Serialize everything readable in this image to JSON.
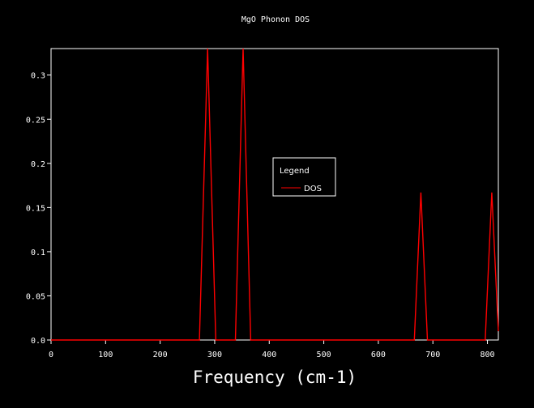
{
  "chart_data": {
    "type": "line",
    "title": "MgO Phonon DOS",
    "xlabel": "Frequency (cm-1)",
    "ylabel": "",
    "xlim": [
      0,
      820
    ],
    "ylim": [
      0,
      0.33
    ],
    "xticks": [
      0,
      100,
      200,
      300,
      400,
      500,
      600,
      700,
      800
    ],
    "xtick_labels": [
      "0",
      "100",
      "200",
      "300",
      "400",
      "500",
      "600",
      "700",
      "800"
    ],
    "yticks": [
      0,
      0.05,
      0.1,
      0.15,
      0.2,
      0.25,
      0.3
    ],
    "ytick_labels": [
      "0.0",
      "0.05",
      "0.1",
      "0.15",
      "0.2",
      "0.25",
      "0.3"
    ],
    "grid": false,
    "legend": {
      "title": "Legend",
      "placement": "center-right"
    },
    "background": "#000000",
    "axis_color": "#ffffff",
    "series": [
      {
        "name": "DOS",
        "color": "#ff0000",
        "x": [
          0,
          272,
          287,
          302,
          338,
          352,
          366,
          666,
          678,
          690,
          796,
          808,
          820
        ],
        "y": [
          0,
          0,
          0.33,
          0,
          0,
          0.33,
          0,
          0,
          0.167,
          0,
          0,
          0.167,
          0.01
        ]
      }
    ]
  }
}
